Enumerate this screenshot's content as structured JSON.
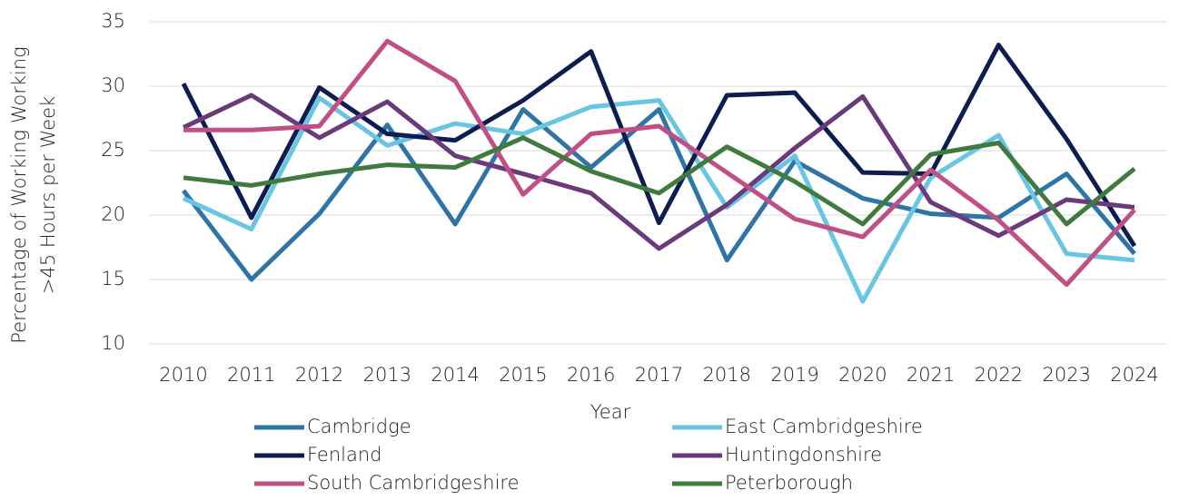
{
  "chart_data": {
    "type": "line",
    "ylabel": [
      "Percentage of Working Working",
      ">45 Hours per Week"
    ],
    "xlabel": "Year",
    "categories": [
      "2010",
      "2011",
      "2012",
      "2013",
      "2014",
      "2015",
      "2016",
      "2017",
      "2018",
      "2019",
      "2020",
      "2021",
      "2022",
      "2023",
      "2024"
    ],
    "ylim": [
      10,
      35
    ],
    "yticks": [
      10,
      15,
      20,
      25,
      30,
      35
    ],
    "grid": true,
    "series": [
      {
        "name": "Cambridge",
        "color": "#2e75a6",
        "values": [
          21.9,
          15.0,
          20.1,
          27.0,
          19.3,
          28.2,
          23.7,
          28.2,
          16.5,
          24.2,
          21.3,
          20.1,
          19.8,
          23.2,
          17.0
        ]
      },
      {
        "name": "East Cambridgeshire",
        "color": "#6ac5e3",
        "values": [
          21.3,
          18.9,
          29.1,
          25.4,
          27.1,
          26.3,
          28.4,
          28.9,
          20.6,
          24.6,
          13.3,
          22.9,
          26.2,
          17.0,
          16.5
        ]
      },
      {
        "name": "Fenland",
        "color": "#0e1d4f",
        "values": [
          30.2,
          19.8,
          29.9,
          26.3,
          25.8,
          28.9,
          32.7,
          19.4,
          29.3,
          29.5,
          23.3,
          23.2,
          33.2,
          25.9,
          17.6
        ]
      },
      {
        "name": "Huntingdonshire",
        "color": "#6b3a7d",
        "values": [
          26.8,
          29.3,
          26.0,
          28.8,
          24.6,
          23.2,
          21.7,
          17.4,
          20.8,
          25.2,
          29.2,
          21.0,
          18.4,
          21.2,
          20.6
        ]
      },
      {
        "name": "South Cambridgeshire",
        "color": "#c04f86",
        "values": [
          26.6,
          26.6,
          26.9,
          33.5,
          30.4,
          21.6,
          26.3,
          26.9,
          23.3,
          19.7,
          18.3,
          23.5,
          19.6,
          14.6,
          20.4
        ]
      },
      {
        "name": "Peterborough",
        "color": "#3f7a3f",
        "values": [
          22.9,
          22.3,
          23.2,
          23.9,
          23.7,
          26.0,
          23.4,
          21.7,
          25.3,
          22.6,
          19.3,
          24.7,
          25.6,
          19.3,
          23.6
        ]
      }
    ]
  }
}
